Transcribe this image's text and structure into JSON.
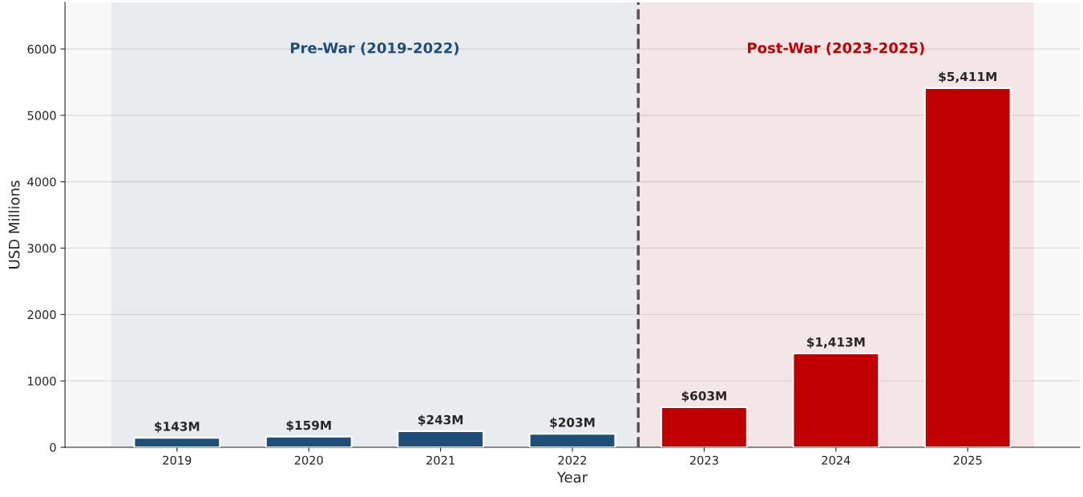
{
  "chart_data": {
    "type": "bar",
    "x": [
      2019,
      2020,
      2021,
      2022,
      2023,
      2024,
      2025
    ],
    "values": [
      143,
      159,
      243,
      203,
      603,
      1413,
      5411
    ],
    "colors": [
      "#1f4e79",
      "#1f4e79",
      "#1f4e79",
      "#1f4e79",
      "#c00000",
      "#c00000",
      "#c00000"
    ],
    "value_labels": [
      "$143M",
      "$159M",
      "$243M",
      "$203M",
      "$603M",
      "$1,413M",
      "$5,411M"
    ],
    "xlabel": "Year",
    "ylabel": "USD Millions",
    "xlim": [
      2018.15,
      2025.85
    ],
    "xticks": [
      2019,
      2020,
      2021,
      2022,
      2023,
      2024,
      2025
    ],
    "ylim": [
      0,
      6700
    ],
    "yticks": [
      0,
      1000,
      2000,
      3000,
      4000,
      5000,
      6000
    ],
    "grid": "y",
    "bands": [
      {
        "axis": "x",
        "from": 2018.5,
        "to": 2022.5,
        "label": "Pre-War (2019-2022)",
        "color": "#1f4e79"
      },
      {
        "axis": "x",
        "from": 2022.5,
        "to": 2025.5,
        "label": "Post-War (2023-2025)",
        "color": "#c00000"
      }
    ],
    "ref_lines": [
      {
        "axis": "x",
        "value": 2022.5,
        "color": "#555555",
        "line_style": "dashed"
      }
    ]
  }
}
